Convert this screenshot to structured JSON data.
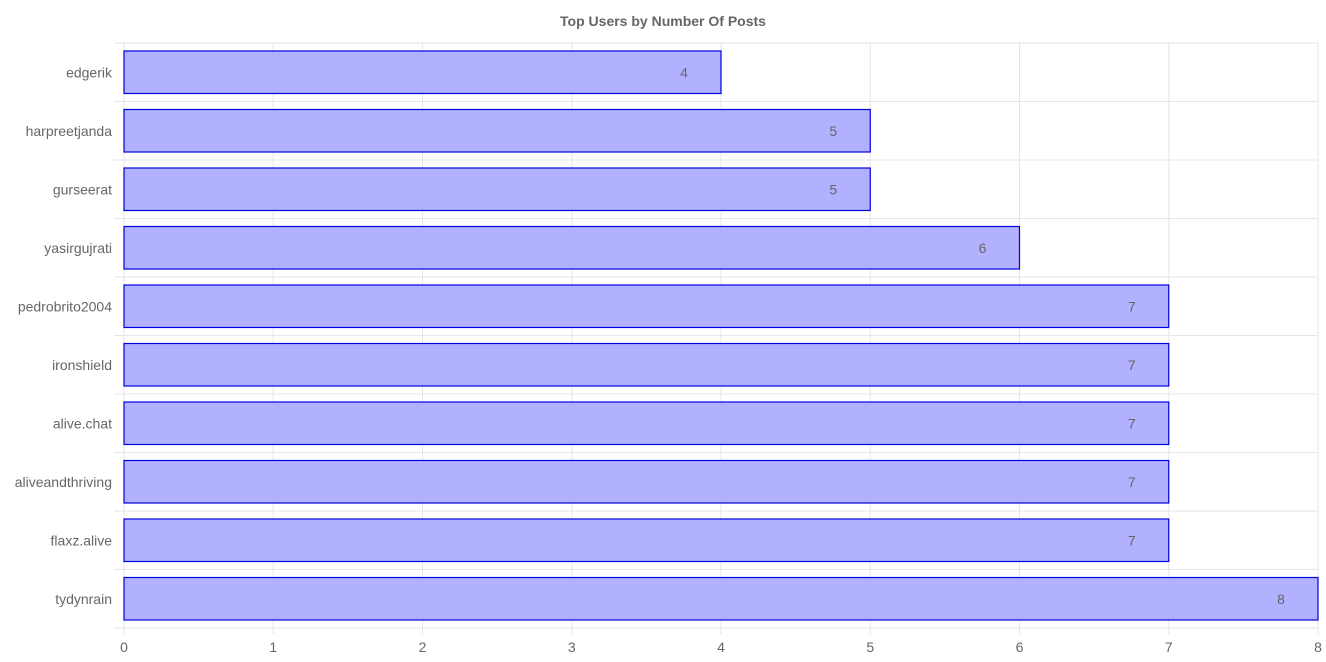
{
  "chart_data": {
    "type": "bar",
    "orientation": "horizontal",
    "title": "Top Users by Number Of Posts",
    "xlabel": "",
    "ylabel": "",
    "categories": [
      "edgerik",
      "harpreetjanda",
      "gurseerat",
      "yasirgujrati",
      "pedrobrito2004",
      "ironshield",
      "alive.chat",
      "aliveandthriving",
      "flaxz.alive",
      "tydynrain"
    ],
    "values": [
      4,
      5,
      5,
      6,
      7,
      7,
      7,
      7,
      7,
      8
    ],
    "xlim": [
      0,
      8
    ],
    "xticks": [
      "0",
      "1",
      "2",
      "3",
      "4",
      "5",
      "6",
      "7",
      "8"
    ],
    "grid": true,
    "legend": "none",
    "data_labels": true
  },
  "colors": {
    "bar_fill": "#b1b1ff",
    "bar_stroke": "#0000dd",
    "grid": "#e6e6e6",
    "text": "#666666"
  }
}
